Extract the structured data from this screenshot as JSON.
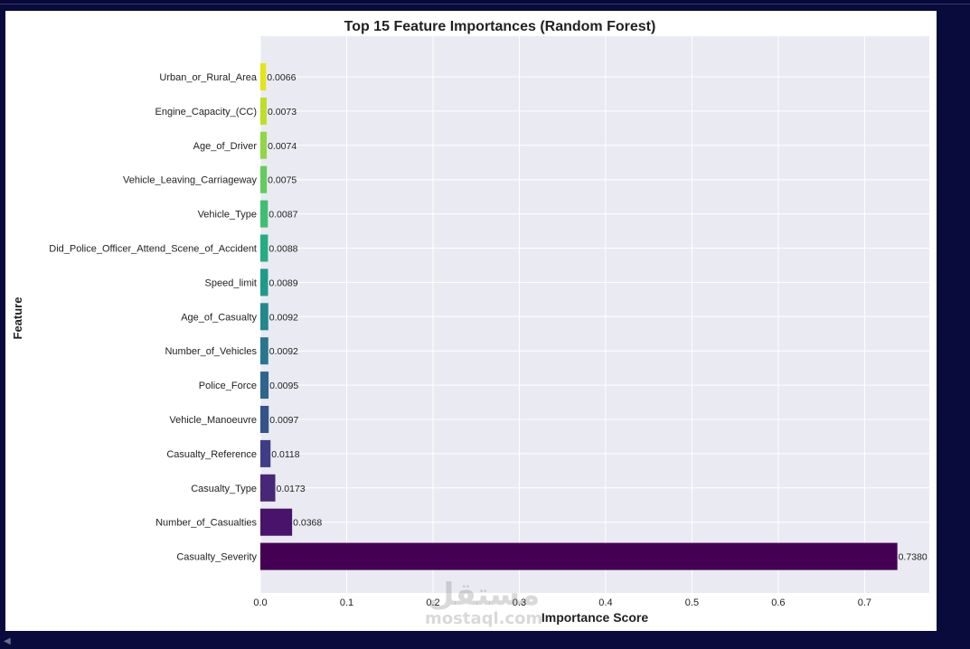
{
  "chart_data": {
    "type": "bar",
    "orientation": "horizontal",
    "title": "Top 15 Feature Importances (Random Forest)",
    "xlabel": "Importance Score",
    "ylabel": "Feature",
    "xlim": [
      0,
      0.775
    ],
    "xticks": [
      0.0,
      0.1,
      0.2,
      0.3,
      0.4,
      0.5,
      0.6,
      0.7
    ],
    "xtick_labels": [
      "0.0",
      "0.1",
      "0.2",
      "0.3",
      "0.4",
      "0.5",
      "0.6",
      "0.7"
    ],
    "grid": true,
    "colormap": "viridis",
    "bars": [
      {
        "label": "Urban_or_Rural_Area",
        "value": 0.0066,
        "value_label": "0.0066",
        "color": "#e5e419"
      },
      {
        "label": "Engine_Capacity_(CC)",
        "value": 0.0073,
        "value_label": "0.0073",
        "color": "#bddf26"
      },
      {
        "label": "Age_of_Driver",
        "value": 0.0074,
        "value_label": "0.0074",
        "color": "#90d743"
      },
      {
        "label": "Vehicle_Leaving_Carriageway",
        "value": 0.0075,
        "value_label": "0.0075",
        "color": "#65cb5e"
      },
      {
        "label": "Vehicle_Type",
        "value": 0.0087,
        "value_label": "0.0087",
        "color": "#40bd72"
      },
      {
        "label": "Did_Police_Officer_Attend_Scene_of_Accident",
        "value": 0.0088,
        "value_label": "0.0088",
        "color": "#25ac82"
      },
      {
        "label": "Speed_limit",
        "value": 0.0089,
        "value_label": "0.0089",
        "color": "#1f9a8a"
      },
      {
        "label": "Age_of_Casualty",
        "value": 0.0092,
        "value_label": "0.0092",
        "color": "#21888c"
      },
      {
        "label": "Number_of_Vehicles",
        "value": 0.0092,
        "value_label": "0.0092",
        "color": "#27768e"
      },
      {
        "label": "Police_Force",
        "value": 0.0095,
        "value_label": "0.0095",
        "color": "#2d658e"
      },
      {
        "label": "Vehicle_Manoeuvre",
        "value": 0.0097,
        "value_label": "0.0097",
        "color": "#355289"
      },
      {
        "label": "Casualty_Reference",
        "value": 0.0118,
        "value_label": "0.0118",
        "color": "#3e3d85"
      },
      {
        "label": "Casualty_Type",
        "value": 0.0173,
        "value_label": "0.0173",
        "color": "#472777"
      },
      {
        "label": "Number_of_Casualties",
        "value": 0.0368,
        "value_label": "0.0368",
        "color": "#48136a"
      },
      {
        "label": "Casualty_Severity",
        "value": 0.738,
        "value_label": "0.7380",
        "color": "#440154"
      }
    ]
  },
  "colors": {
    "plot_background": "#eaeaf2",
    "grid": "#ffffff",
    "page_background": "#07083a"
  },
  "watermark": {
    "arabic": "مستقل",
    "latin": "mostaql.com"
  }
}
